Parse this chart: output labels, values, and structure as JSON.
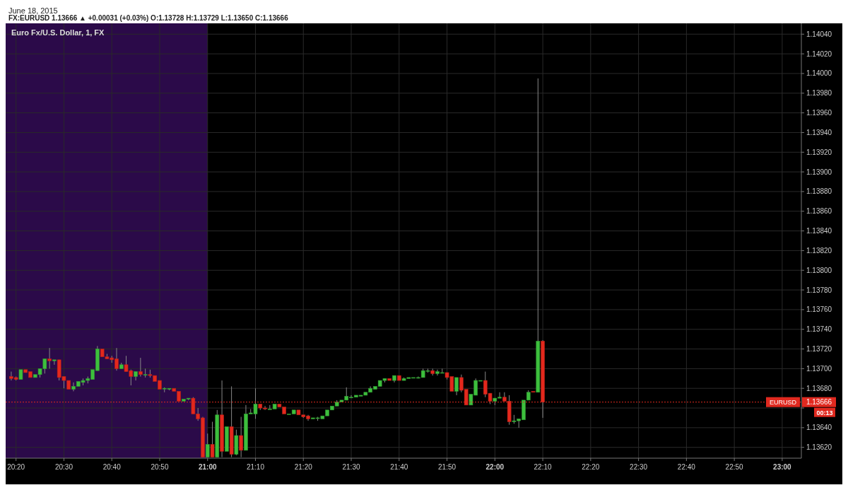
{
  "chart_data": {
    "type": "candlestick",
    "title": "Euro Fx/U.S. Dollar, 1, FX",
    "subtitle": "FX:EURUSD 1.13666 ▲ +0.00031 (+0.03%) O:1.13728 H:1.13729 L:1.13650 C:1.13666",
    "annotations": [
      "June 18, 2015",
      "1.13666",
      "00:13"
    ],
    "x": [
      "2015-06-18T20:19",
      "2015-06-18T20:20",
      "2015-06-18T20:21",
      "2015-06-18T20:22",
      "2015-06-18T20:23",
      "2015-06-18T20:24",
      "2015-06-18T20:25",
      "2015-06-18T20:26",
      "2015-06-18T20:27",
      "2015-06-18T20:28",
      "2015-06-18T20:29",
      "2015-06-18T20:30",
      "2015-06-18T20:31",
      "2015-06-18T20:32",
      "2015-06-18T20:33",
      "2015-06-18T20:34",
      "2015-06-18T20:35",
      "2015-06-18T20:36",
      "2015-06-18T20:37",
      "2015-06-18T20:38",
      "2015-06-18T20:39",
      "2015-06-18T20:40",
      "2015-06-18T20:41",
      "2015-06-18T20:42",
      "2015-06-18T20:43",
      "2015-06-18T20:44",
      "2015-06-18T20:45",
      "2015-06-18T20:46",
      "2015-06-18T20:47",
      "2015-06-18T20:48",
      "2015-06-18T20:49",
      "2015-06-18T20:50",
      "2015-06-18T20:51",
      "2015-06-18T20:52",
      "2015-06-18T20:53",
      "2015-06-18T20:54",
      "2015-06-18T20:55",
      "2015-06-18T20:56",
      "2015-06-18T20:57",
      "2015-06-18T20:58",
      "2015-06-18T20:59",
      "2015-06-18T21:00",
      "2015-06-18T21:01",
      "2015-06-18T21:02",
      "2015-06-18T21:03",
      "2015-06-18T21:04",
      "2015-06-18T21:05",
      "2015-06-18T21:06",
      "2015-06-18T21:07",
      "2015-06-18T21:08",
      "2015-06-18T21:09",
      "2015-06-18T21:10",
      "2015-06-18T21:11",
      "2015-06-18T21:12",
      "2015-06-18T21:13",
      "2015-06-18T21:14",
      "2015-06-18T21:15",
      "2015-06-18T21:16",
      "2015-06-18T21:17",
      "2015-06-18T21:18",
      "2015-06-18T21:19",
      "2015-06-18T21:20",
      "2015-06-18T21:21",
      "2015-06-18T21:22",
      "2015-06-18T21:23",
      "2015-06-18T21:24",
      "2015-06-18T21:25",
      "2015-06-18T21:26",
      "2015-06-18T21:27",
      "2015-06-18T21:28",
      "2015-06-18T21:29",
      "2015-06-18T21:30",
      "2015-06-18T21:31",
      "2015-06-18T21:32",
      "2015-06-18T21:33",
      "2015-06-18T21:34",
      "2015-06-18T21:35",
      "2015-06-18T21:36",
      "2015-06-18T21:37",
      "2015-06-18T21:38",
      "2015-06-18T21:39",
      "2015-06-18T21:40",
      "2015-06-18T21:41",
      "2015-06-18T21:42",
      "2015-06-18T21:43",
      "2015-06-18T21:44",
      "2015-06-18T21:45",
      "2015-06-18T21:46",
      "2015-06-18T21:47",
      "2015-06-18T21:48",
      "2015-06-18T21:49",
      "2015-06-18T21:50",
      "2015-06-18T21:51",
      "2015-06-18T21:52",
      "2015-06-18T21:53",
      "2015-06-18T21:54",
      "2015-06-18T21:55",
      "2015-06-18T21:56",
      "2015-06-18T21:57",
      "2015-06-18T21:58",
      "2015-06-18T21:59",
      "2015-06-18T22:00",
      "2015-06-18T22:01",
      "2015-06-18T22:02",
      "2015-06-18T22:03",
      "2015-06-18T22:04",
      "2015-06-18T22:05",
      "2015-06-18T22:06",
      "2015-06-18T22:07",
      "2015-06-18T22:08",
      "2015-06-18T22:09",
      "2015-06-18T22:10"
    ],
    "ohlc": [
      [
        1.13692,
        1.13697,
        1.13688,
        1.1369
      ],
      [
        1.13691,
        1.13692,
        1.13688,
        1.13689
      ],
      [
        1.13689,
        1.13699,
        1.13689,
        1.13699
      ],
      [
        1.13699,
        1.13699,
        1.13696,
        1.13696
      ],
      [
        1.13697,
        1.13697,
        1.13691,
        1.13691
      ],
      [
        1.13691,
        1.13694,
        1.13691,
        1.13694
      ],
      [
        1.13694,
        1.137,
        1.13691,
        1.137
      ],
      [
        1.137,
        1.1371,
        1.13695,
        1.1371
      ],
      [
        1.1371,
        1.13721,
        1.137,
        1.13708
      ],
      [
        1.13708,
        1.13709,
        1.13704,
        1.13709
      ],
      [
        1.13709,
        1.13709,
        1.13688,
        1.13691
      ],
      [
        1.13692,
        1.13692,
        1.1368,
        1.13688
      ],
      [
        1.13688,
        1.13688,
        1.13679,
        1.13679
      ],
      [
        1.13679,
        1.13686,
        1.13677,
        1.13682
      ],
      [
        1.13682,
        1.13687,
        1.13682,
        1.13687
      ],
      [
        1.13686,
        1.1369,
        1.13683,
        1.13688
      ],
      [
        1.13688,
        1.13692,
        1.13685,
        1.1369
      ],
      [
        1.13689,
        1.13699,
        1.13689,
        1.13699
      ],
      [
        1.13698,
        1.13723,
        1.13698,
        1.1372
      ],
      [
        1.1372,
        1.1372,
        1.13712,
        1.13712
      ],
      [
        1.13712,
        1.13715,
        1.1371,
        1.1371
      ],
      [
        1.13711,
        1.13713,
        1.13706,
        1.13709
      ],
      [
        1.1371,
        1.13721,
        1.13698,
        1.137
      ],
      [
        1.137,
        1.13706,
        1.137,
        1.13704
      ],
      [
        1.13704,
        1.13713,
        1.13697,
        1.13697
      ],
      [
        1.13698,
        1.13699,
        1.13683,
        1.13692
      ],
      [
        1.13692,
        1.13697,
        1.13688,
        1.13697
      ],
      [
        1.13697,
        1.13711,
        1.13692,
        1.13694
      ],
      [
        1.13694,
        1.137,
        1.13691,
        1.13694
      ],
      [
        1.13694,
        1.13699,
        1.13691,
        1.13693
      ],
      [
        1.13693,
        1.13693,
        1.13687,
        1.13687
      ],
      [
        1.13688,
        1.13688,
        1.13679,
        1.13679
      ],
      [
        1.1368,
        1.13681,
        1.13676,
        1.1368
      ],
      [
        1.13679,
        1.1368,
        1.13678,
        1.1368
      ],
      [
        1.1368,
        1.1368,
        1.13677,
        1.13677
      ],
      [
        1.13677,
        1.13677,
        1.13667,
        1.13667
      ],
      [
        1.13667,
        1.13669,
        1.13667,
        1.13669
      ],
      [
        1.13669,
        1.1367,
        1.13668,
        1.1367
      ],
      [
        1.1367,
        1.13671,
        1.13654,
        1.13654
      ],
      [
        1.13654,
        1.1366,
        1.13647,
        1.13649
      ],
      [
        1.1365,
        1.13651,
        1.1361,
        1.1361
      ],
      [
        1.1361,
        1.13634,
        1.1361,
        1.13623
      ],
      [
        1.13623,
        1.13646,
        1.1361,
        1.1361
      ],
      [
        1.1361,
        1.13658,
        1.1361,
        1.13653
      ],
      [
        1.13653,
        1.13688,
        1.1361,
        1.13616
      ],
      [
        1.13616,
        1.13641,
        1.13616,
        1.13641
      ],
      [
        1.13641,
        1.13682,
        1.1361,
        1.13613
      ],
      [
        1.13613,
        1.13638,
        1.13612,
        1.13632
      ],
      [
        1.13632,
        1.13651,
        1.1361,
        1.13617
      ],
      [
        1.13617,
        1.13663,
        1.13617,
        1.13654
      ],
      [
        1.13654,
        1.13659,
        1.13654,
        1.13655
      ],
      [
        1.13654,
        1.1368,
        1.13649,
        1.13664
      ],
      [
        1.13664,
        1.13664,
        1.13658,
        1.1366
      ],
      [
        1.1366,
        1.13662,
        1.13658,
        1.13659
      ],
      [
        1.13659,
        1.13663,
        1.13659,
        1.13659
      ],
      [
        1.13659,
        1.13664,
        1.13659,
        1.13664
      ],
      [
        1.13664,
        1.13664,
        1.13661,
        1.13661
      ],
      [
        1.13661,
        1.13661,
        1.13654,
        1.13654
      ],
      [
        1.13654,
        1.13654,
        1.13654,
        1.13654
      ],
      [
        1.13654,
        1.13658,
        1.13654,
        1.13658
      ],
      [
        1.13658,
        1.13658,
        1.13653,
        1.13653
      ],
      [
        1.13653,
        1.13653,
        1.1365,
        1.13651
      ],
      [
        1.13652,
        1.13653,
        1.13647,
        1.13649
      ],
      [
        1.13649,
        1.1365,
        1.13649,
        1.1365
      ],
      [
        1.1365,
        1.13651,
        1.13647,
        1.1365
      ],
      [
        1.13649,
        1.13652,
        1.13649,
        1.13652
      ],
      [
        1.13652,
        1.13658,
        1.13652,
        1.13658
      ],
      [
        1.13658,
        1.13662,
        1.13658,
        1.13662
      ],
      [
        1.13662,
        1.13668,
        1.13662,
        1.13666
      ],
      [
        1.13666,
        1.13668,
        1.13666,
        1.13668
      ],
      [
        1.13668,
        1.13681,
        1.13668,
        1.13672
      ],
      [
        1.13671,
        1.13673,
        1.1367,
        1.13671
      ],
      [
        1.13671,
        1.13673,
        1.13671,
        1.13673
      ],
      [
        1.13672,
        1.13673,
        1.13672,
        1.13673
      ],
      [
        1.13673,
        1.13676,
        1.13673,
        1.13676
      ],
      [
        1.13676,
        1.13682,
        1.13676,
        1.1368
      ],
      [
        1.13679,
        1.13682,
        1.13679,
        1.13682
      ],
      [
        1.13682,
        1.13688,
        1.13682,
        1.13688
      ],
      [
        1.13688,
        1.1369,
        1.13686,
        1.1369
      ],
      [
        1.1369,
        1.1369,
        1.13688,
        1.13688
      ],
      [
        1.13688,
        1.13693,
        1.13686,
        1.13693
      ],
      [
        1.13693,
        1.13693,
        1.13688,
        1.13688
      ],
      [
        1.13688,
        1.13691,
        1.13688,
        1.1369
      ],
      [
        1.1369,
        1.13691,
        1.1369,
        1.13691
      ],
      [
        1.13691,
        1.13691,
        1.13691,
        1.13691
      ],
      [
        1.13691,
        1.13692,
        1.1369,
        1.13691
      ],
      [
        1.13691,
        1.137,
        1.13691,
        1.13698
      ],
      [
        1.13698,
        1.137,
        1.13696,
        1.13698
      ],
      [
        1.13698,
        1.137,
        1.13693,
        1.13695
      ],
      [
        1.13695,
        1.13699,
        1.13693,
        1.13697
      ],
      [
        1.13696,
        1.137,
        1.13696,
        1.13696
      ],
      [
        1.13696,
        1.13696,
        1.13689,
        1.13691
      ],
      [
        1.13692,
        1.13692,
        1.13677,
        1.13677
      ],
      [
        1.13677,
        1.13691,
        1.13673,
        1.13691
      ],
      [
        1.13691,
        1.13694,
        1.13676,
        1.13678
      ],
      [
        1.13679,
        1.13679,
        1.13663,
        1.13663
      ],
      [
        1.13663,
        1.13674,
        1.13663,
        1.13674
      ],
      [
        1.13673,
        1.1369,
        1.13673,
        1.13688
      ],
      [
        1.13688,
        1.13688,
        1.13688,
        1.13688
      ],
      [
        1.13688,
        1.13697,
        1.13671,
        1.13674
      ],
      [
        1.13675,
        1.13675,
        1.13664,
        1.13667
      ],
      [
        1.13667,
        1.1367,
        1.13663,
        1.1367
      ],
      [
        1.1367,
        1.13676,
        1.1367,
        1.13671
      ],
      [
        1.13671,
        1.13676,
        1.13667,
        1.13667
      ],
      [
        1.13667,
        1.13673,
        1.13643,
        1.13646
      ],
      [
        1.13646,
        1.13653,
        1.13644,
        1.13647
      ],
      [
        1.13647,
        1.13649,
        1.1364,
        1.13649
      ],
      [
        1.13648,
        1.13668,
        1.13648,
        1.13668
      ],
      [
        1.13668,
        1.13678,
        1.13668,
        1.13676
      ],
      [
        1.13677,
        1.13677,
        1.13676,
        1.13676
      ],
      [
        1.13676,
        1.13995,
        1.13676,
        1.13728
      ],
      [
        1.13728,
        1.13729,
        1.1365,
        1.13666
      ]
    ],
    "xlim": [
      "2015-06-18T20:17:50",
      "2015-06-18T23:04"
    ],
    "xticks": [
      {
        "value": "2015-06-18T20:20",
        "label": "20:20"
      },
      {
        "value": "2015-06-18T20:30",
        "label": "20:30"
      },
      {
        "value": "2015-06-18T20:40",
        "label": "20:40"
      },
      {
        "value": "2015-06-18T20:50",
        "label": "20:50"
      },
      {
        "value": "2015-06-18T21:00",
        "label": "21:00"
      },
      {
        "value": "2015-06-18T21:10",
        "label": "21:10"
      },
      {
        "value": "2015-06-18T21:20",
        "label": "21:20"
      },
      {
        "value": "2015-06-18T21:30",
        "label": "21:30"
      },
      {
        "value": "2015-06-18T21:40",
        "label": "21:40"
      },
      {
        "value": "2015-06-18T21:50",
        "label": "21:50"
      },
      {
        "value": "2015-06-18T22:00",
        "label": "22:00"
      },
      {
        "value": "2015-06-18T22:10",
        "label": "22:10"
      },
      {
        "value": "2015-06-18T22:20",
        "label": "22:20"
      },
      {
        "value": "2015-06-18T22:30",
        "label": "22:30"
      },
      {
        "value": "2015-06-18T22:40",
        "label": "22:40"
      },
      {
        "value": "2015-06-18T22:50",
        "label": "22:50"
      },
      {
        "value": "2015-06-18T23:00",
        "label": "23:00"
      }
    ],
    "ylim": [
      1.13609,
      1.14051
    ],
    "yticks": [
      {
        "value": 1.1362,
        "label": "1.13620"
      },
      {
        "value": 1.1364,
        "label": "1.13640"
      },
      {
        "value": 1.1366,
        "label": null
      },
      {
        "value": 1.1368,
        "label": "1.13680"
      },
      {
        "value": 1.137,
        "label": "1.13700"
      },
      {
        "value": 1.1372,
        "label": "1.13720"
      },
      {
        "value": 1.1374,
        "label": "1.13740"
      },
      {
        "value": 1.1376,
        "label": "1.13760"
      },
      {
        "value": 1.1378,
        "label": "1.13780"
      },
      {
        "value": 1.138,
        "label": "1.13800"
      },
      {
        "value": 1.1382,
        "label": "1.13820"
      },
      {
        "value": 1.1384,
        "label": "1.13840"
      },
      {
        "value": 1.1386,
        "label": "1.13860"
      },
      {
        "value": 1.1388,
        "label": "1.13880"
      },
      {
        "value": 1.139,
        "label": "1.13900"
      },
      {
        "value": 1.1392,
        "label": "1.13920"
      },
      {
        "value": 1.1394,
        "label": "1.13940"
      },
      {
        "value": 1.1396,
        "label": "1.13960"
      },
      {
        "value": 1.1398,
        "label": "1.13980"
      },
      {
        "value": 1.14,
        "label": "1.14000"
      },
      {
        "value": 1.1402,
        "label": "1.14020"
      },
      {
        "value": 1.1404,
        "label": "1.14040"
      }
    ],
    "grid": true,
    "bands": [
      {
        "axis": "x",
        "from": "2015-06-18T20:17:50",
        "to": "2015-06-18T21:00",
        "color": "#2b0a49"
      }
    ],
    "ref_lines": [
      {
        "axis": "y",
        "value": 1.13666,
        "label": "EURUSD",
        "color": "#e0291f",
        "line_style": "dotted"
      }
    ]
  }
}
